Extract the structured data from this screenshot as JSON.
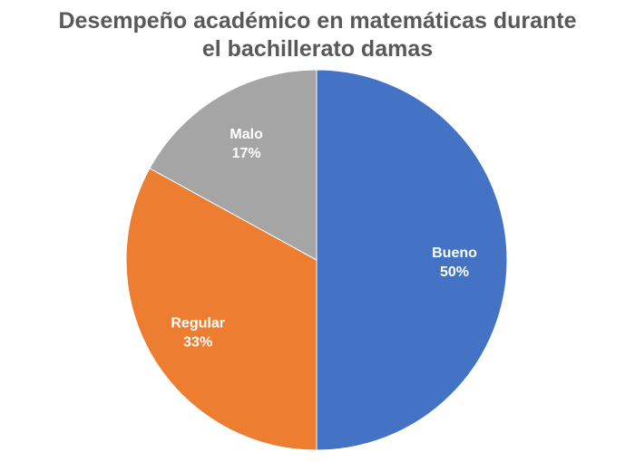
{
  "chart_data": {
    "type": "pie",
    "title_lines": [
      "Desempeño académico en matemáticas durante",
      "el bachillerato damas"
    ],
    "slices": [
      {
        "label": "Bueno",
        "value": 50,
        "value_label": "50%",
        "color": "#4472C4"
      },
      {
        "label": "Regular",
        "value": 33,
        "value_label": "33%",
        "color": "#ED7D31"
      },
      {
        "label": "Malo",
        "value": 17,
        "value_label": "17%",
        "color": "#A5A5A5"
      }
    ],
    "start": "top",
    "direction": "clockwise",
    "legend": "none",
    "data_labels": "inside"
  }
}
